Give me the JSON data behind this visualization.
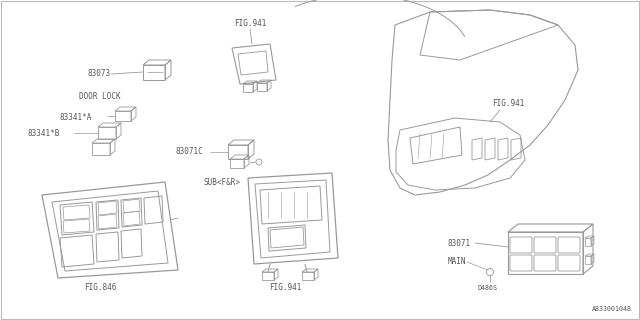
{
  "bg_color": "#ffffff",
  "lc": "#999999",
  "tc": "#555555",
  "part_number": "A833001048",
  "labels": {
    "fig846": "FIG.846",
    "fig941_top": "FIG.941",
    "fig941_mid": "FIG.941",
    "fig941_bot": "FIG.941",
    "n83073": "83073",
    "door_lock": "DOOR LOCK",
    "n83341a": "83341*A",
    "n83341b": "83341*B",
    "n83071c": "83071C",
    "sub": "SUB<F&R>",
    "n83071": "83071",
    "main": "MAIN",
    "d486s": "D486S"
  },
  "fs": 5.5,
  "fs_small": 4.8
}
